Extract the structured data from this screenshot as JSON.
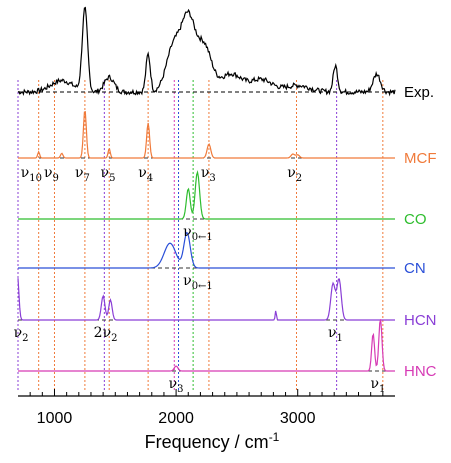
{
  "chart_data": {
    "type": "line",
    "xlabel": "Frequency / cm",
    "xlabel_sup": "-1",
    "xlim": [
      700,
      3800
    ],
    "xticks": [
      1000,
      2000,
      3000
    ],
    "tick_labels": [
      "1000",
      "2000",
      "3000"
    ],
    "series": [
      {
        "name": "Exp.",
        "color": "#000000",
        "peaks": [
          {
            "x": 1060,
            "h": 0.14,
            "w": 90
          },
          {
            "x": 1250,
            "h": 1.0,
            "w": 22
          },
          {
            "x": 1450,
            "h": 0.18,
            "w": 40
          },
          {
            "x": 1770,
            "h": 0.46,
            "w": 18
          },
          {
            "x": 1980,
            "h": 0.55,
            "w": 60
          },
          {
            "x": 2100,
            "h": 0.85,
            "w": 55
          },
          {
            "x": 2230,
            "h": 0.55,
            "w": 60
          },
          {
            "x": 2450,
            "h": 0.22,
            "w": 90
          },
          {
            "x": 2700,
            "h": 0.15,
            "w": 90
          },
          {
            "x": 3000,
            "h": 0.08,
            "w": 100
          },
          {
            "x": 3310,
            "h": 0.32,
            "w": 18
          },
          {
            "x": 3650,
            "h": 0.22,
            "w": 30
          }
        ]
      },
      {
        "name": "MCF",
        "color": "#f07a3a",
        "peaks": [
          {
            "x": 870,
            "h": 0.08,
            "w": 8
          },
          {
            "x": 1060,
            "h": 0.06,
            "w": 10
          },
          {
            "x": 1250,
            "h": 0.62,
            "w": 12
          },
          {
            "x": 1450,
            "h": 0.12,
            "w": 9
          },
          {
            "x": 1770,
            "h": 0.45,
            "w": 12
          },
          {
            "x": 2270,
            "h": 0.18,
            "w": 15
          },
          {
            "x": 2960,
            "h": 0.05,
            "w": 15
          },
          {
            "x": 3000,
            "h": 0.04,
            "w": 15
          }
        ]
      },
      {
        "name": "CO",
        "color": "#2ebd2e",
        "peaks": [
          {
            "x": 2100,
            "h": 0.55,
            "w": 16
          },
          {
            "x": 2175,
            "h": 0.85,
            "w": 18
          }
        ]
      },
      {
        "name": "CN",
        "color": "#2a4fd8",
        "peaks": [
          {
            "x": 1950,
            "h": 0.55,
            "w": 48
          },
          {
            "x": 2090,
            "h": 0.78,
            "w": 26
          }
        ]
      },
      {
        "name": "HCN",
        "color": "#8a3fd6",
        "peaks": [
          {
            "x": 695,
            "h": 0.95,
            "w": 12
          },
          {
            "x": 1400,
            "h": 0.5,
            "w": 15
          },
          {
            "x": 1460,
            "h": 0.42,
            "w": 14
          },
          {
            "x": 2820,
            "h": 0.2,
            "w": 5
          },
          {
            "x": 3290,
            "h": 0.75,
            "w": 18
          },
          {
            "x": 3340,
            "h": 0.85,
            "w": 18
          }
        ]
      },
      {
        "name": "HNC",
        "color": "#d63ab5",
        "peaks": [
          {
            "x": 2000,
            "h": 0.09,
            "w": 15
          },
          {
            "x": 3620,
            "h": 0.68,
            "w": 12
          },
          {
            "x": 3680,
            "h": 0.95,
            "w": 13
          }
        ]
      }
    ],
    "guide_lines": [
      {
        "x": 700,
        "color": "#8a3fd6"
      },
      {
        "x": 870,
        "color": "#f07a3a"
      },
      {
        "x": 1000,
        "color": "#f07a3a"
      },
      {
        "x": 1250,
        "color": "#f07a3a"
      },
      {
        "x": 1410,
        "color": "#8a3fd6"
      },
      {
        "x": 1450,
        "color": "#f07a3a"
      },
      {
        "x": 1770,
        "color": "#f07a3a"
      },
      {
        "x": 1985,
        "color": "#d63ab5"
      },
      {
        "x": 2020,
        "color": "#2a4fd8"
      },
      {
        "x": 2140,
        "color": "#2ebd2e"
      },
      {
        "x": 2270,
        "color": "#f07a3a"
      },
      {
        "x": 2990,
        "color": "#f07a3a"
      },
      {
        "x": 3320,
        "color": "#8a3fd6"
      },
      {
        "x": 3700,
        "color": "#f07a3a"
      }
    ],
    "mode_labels": [
      {
        "x": 810,
        "row": "MCF",
        "base": "ν",
        "sub": "10"
      },
      {
        "x": 975,
        "row": "MCF",
        "base": "ν",
        "sub": "9"
      },
      {
        "x": 1230,
        "row": "MCF",
        "base": "ν",
        "sub": "7"
      },
      {
        "x": 1440,
        "row": "MCF",
        "base": "ν",
        "sub": "5"
      },
      {
        "x": 1750,
        "row": "MCF",
        "base": "ν",
        "sub": "4"
      },
      {
        "x": 2265,
        "row": "MCF",
        "base": "ν",
        "sub": "3"
      },
      {
        "x": 2975,
        "row": "MCF",
        "base": "ν",
        "sub": "2"
      },
      {
        "x": 2180,
        "row": "CO",
        "base": "ν",
        "sub": "0←1"
      },
      {
        "x": 2180,
        "row": "CN",
        "base": "ν",
        "sub": "0←1"
      },
      {
        "x": 725,
        "row": "HCN",
        "base": "ν",
        "sub": "2"
      },
      {
        "x": 1420,
        "row": "HCN",
        "base": "2ν",
        "sub": "2"
      },
      {
        "x": 3310,
        "row": "HCN",
        "base": "ν",
        "sub": "1"
      },
      {
        "x": 2000,
        "row": "HNC",
        "base": "ν",
        "sub": "3"
      },
      {
        "x": 3660,
        "row": "HNC",
        "base": "ν",
        "sub": "1"
      }
    ]
  }
}
